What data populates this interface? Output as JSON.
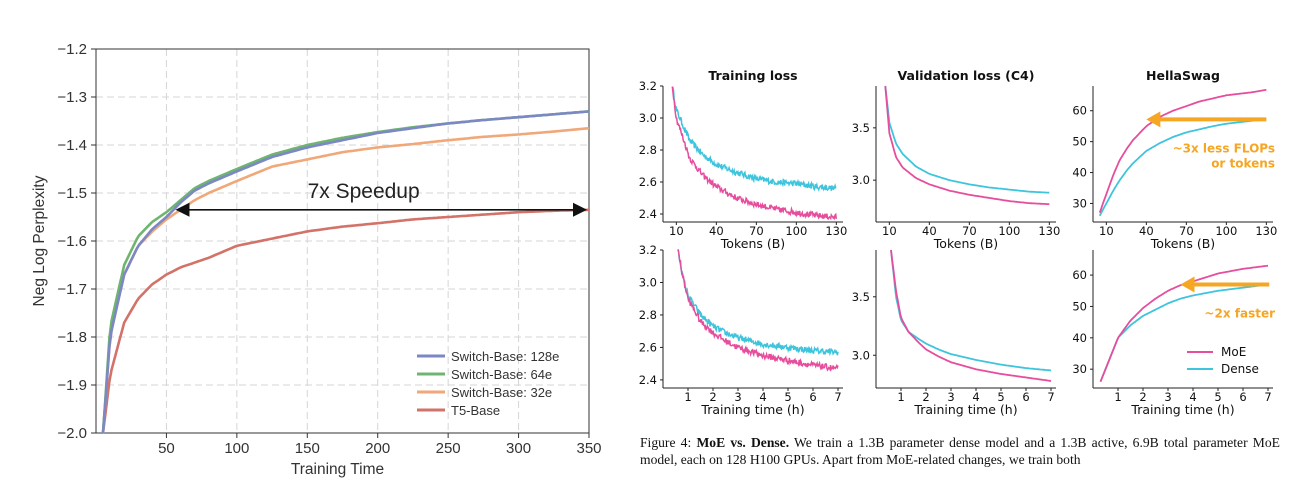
{
  "colors": {
    "switch128": "#7b88c4",
    "switch64": "#6fb46f",
    "switch32": "#f0a878",
    "t5": "#d27268",
    "moe": "#e64d9c",
    "dense": "#3ec4dc",
    "arrow": "#f5a623"
  },
  "chart_data": [
    {
      "type": "line",
      "title": "",
      "xlabel": "Training Time",
      "ylabel": "Neg Log Perplexity",
      "xlim": [
        0,
        350
      ],
      "ylim": [
        -2.0,
        -1.2
      ],
      "xticks": [
        "50",
        "100",
        "150",
        "200",
        "250",
        "300",
        "350"
      ],
      "yticks": [
        "−1.2",
        "−1.3",
        "−1.4",
        "−1.5",
        "−1.6",
        "−1.7",
        "−1.8",
        "−1.9",
        "−2.0"
      ],
      "grid": true,
      "legend_position": "bottom-right",
      "annotation": "7x Speedup",
      "annotation_span": [
        55,
        350
      ],
      "annotation_y": -1.535,
      "series": [
        {
          "name": "Switch-Base: 128e",
          "color_key": "switch128",
          "x": [
            5,
            10,
            20,
            30,
            40,
            50,
            60,
            70,
            80,
            100,
            125,
            150,
            175,
            200,
            225,
            250,
            275,
            300,
            325,
            350
          ],
          "y": [
            -2.0,
            -1.8,
            -1.67,
            -1.61,
            -1.575,
            -1.55,
            -1.52,
            -1.495,
            -1.48,
            -1.455,
            -1.425,
            -1.405,
            -1.39,
            -1.375,
            -1.365,
            -1.355,
            -1.348,
            -1.342,
            -1.336,
            -1.33
          ]
        },
        {
          "name": "Switch-Base: 64e",
          "color_key": "switch64",
          "x": [
            5,
            10,
            20,
            30,
            40,
            50,
            60,
            70,
            80,
            100,
            125,
            150,
            175,
            200,
            225,
            250,
            275,
            300,
            325,
            350
          ],
          "y": [
            -2.0,
            -1.78,
            -1.65,
            -1.59,
            -1.56,
            -1.54,
            -1.515,
            -1.49,
            -1.475,
            -1.45,
            -1.42,
            -1.4,
            -1.385,
            -1.373,
            -1.363,
            -1.355,
            -1.348,
            -1.342,
            -1.336,
            -1.33
          ]
        },
        {
          "name": "Switch-Base: 32e",
          "color_key": "switch32",
          "x": [
            5,
            10,
            20,
            30,
            40,
            50,
            60,
            70,
            80,
            100,
            125,
            150,
            175,
            200,
            225,
            250,
            275,
            300,
            325,
            350
          ],
          "y": [
            -2.0,
            -1.8,
            -1.67,
            -1.61,
            -1.58,
            -1.555,
            -1.535,
            -1.515,
            -1.5,
            -1.475,
            -1.445,
            -1.43,
            -1.415,
            -1.405,
            -1.398,
            -1.39,
            -1.383,
            -1.378,
            -1.372,
            -1.365
          ]
        },
        {
          "name": "T5-Base",
          "color_key": "t5",
          "x": [
            5,
            10,
            20,
            30,
            40,
            50,
            60,
            80,
            100,
            125,
            150,
            175,
            200,
            225,
            250,
            275,
            300,
            325,
            350
          ],
          "y": [
            -2.0,
            -1.88,
            -1.77,
            -1.72,
            -1.69,
            -1.67,
            -1.655,
            -1.635,
            -1.61,
            -1.595,
            -1.58,
            -1.57,
            -1.563,
            -1.555,
            -1.55,
            -1.545,
            -1.54,
            -1.537,
            -1.535
          ]
        }
      ]
    },
    {
      "type": "line",
      "title": "Training loss",
      "xlabel": "Tokens (B)",
      "xlim": [
        0,
        135
      ],
      "ylim": [
        2.35,
        3.2
      ],
      "xticks": [
        10,
        40,
        70,
        100,
        130
      ],
      "yticks": [
        "2.4",
        "2.6",
        "2.8",
        "3.0",
        "3.2"
      ],
      "ytick_values": [
        2.4,
        2.6,
        2.8,
        3.0,
        3.2
      ],
      "noisy": true,
      "series": [
        {
          "name": "MoE",
          "color_key": "moe",
          "x": [
            7,
            10,
            20,
            30,
            40,
            55,
            70,
            85,
            100,
            115,
            130
          ],
          "y": [
            3.2,
            3.0,
            2.75,
            2.64,
            2.57,
            2.5,
            2.46,
            2.43,
            2.41,
            2.39,
            2.38
          ]
        },
        {
          "name": "Dense",
          "color_key": "dense",
          "x": [
            7,
            10,
            20,
            30,
            40,
            55,
            70,
            85,
            100,
            115,
            130
          ],
          "y": [
            3.2,
            3.05,
            2.86,
            2.77,
            2.71,
            2.66,
            2.62,
            2.6,
            2.59,
            2.57,
            2.56
          ]
        }
      ]
    },
    {
      "type": "line",
      "title": "Validation loss (C4)",
      "xlabel": "Tokens (B)",
      "xlim": [
        0,
        135
      ],
      "ylim": [
        2.6,
        3.9
      ],
      "xticks": [
        10,
        40,
        70,
        100,
        130
      ],
      "yticks": [
        "3.0",
        "3.5"
      ],
      "ytick_values": [
        3.0,
        3.5
      ],
      "noisy": false,
      "series": [
        {
          "name": "MoE",
          "color_key": "moe",
          "x": [
            7,
            10,
            15,
            20,
            30,
            40,
            55,
            70,
            85,
            100,
            115,
            130
          ],
          "y": [
            3.9,
            3.45,
            3.22,
            3.12,
            3.02,
            2.96,
            2.9,
            2.86,
            2.83,
            2.8,
            2.78,
            2.77
          ]
        },
        {
          "name": "Dense",
          "color_key": "dense",
          "x": [
            7,
            10,
            15,
            20,
            30,
            40,
            55,
            70,
            85,
            100,
            115,
            130
          ],
          "y": [
            3.9,
            3.55,
            3.35,
            3.25,
            3.13,
            3.06,
            3.0,
            2.96,
            2.93,
            2.91,
            2.89,
            2.88
          ]
        }
      ]
    },
    {
      "type": "line",
      "title": "HellaSwag",
      "xlabel": "Tokens (B)",
      "xlim": [
        0,
        135
      ],
      "ylim": [
        24,
        68
      ],
      "xticks": [
        10,
        40,
        70,
        100,
        130
      ],
      "yticks": [
        "30",
        "40",
        "50",
        "60"
      ],
      "ytick_values": [
        30,
        40,
        50,
        60
      ],
      "noisy": false,
      "annotation": "~3x less FLOPs\nor tokens",
      "arrow": {
        "from_x": 130,
        "to_x": 40,
        "y": 57.2
      },
      "series": [
        {
          "name": "MoE",
          "color_key": "moe",
          "x": [
            5,
            10,
            15,
            20,
            25,
            30,
            40,
            50,
            60,
            70,
            80,
            90,
            100,
            110,
            120,
            130
          ],
          "y": [
            27,
            33,
            39,
            44,
            47.5,
            50.5,
            55,
            58,
            60,
            61.5,
            63,
            64,
            65,
            65.5,
            66,
            66.8
          ]
        },
        {
          "name": "Dense",
          "color_key": "dense",
          "x": [
            5,
            10,
            15,
            20,
            25,
            30,
            40,
            50,
            60,
            70,
            80,
            90,
            100,
            110,
            120,
            130
          ],
          "y": [
            26,
            30,
            34,
            37.5,
            40.5,
            43,
            47,
            49.5,
            51.5,
            53,
            54,
            55,
            55.8,
            56.3,
            56.8,
            57.2
          ]
        }
      ]
    },
    {
      "type": "line",
      "title": "",
      "xlabel": "Training time (h)",
      "xlim": [
        0,
        7.2
      ],
      "ylim": [
        2.35,
        3.2
      ],
      "xticks": [
        1,
        2,
        3,
        4,
        5,
        6,
        7
      ],
      "yticks": [
        "2.4",
        "2.6",
        "2.8",
        "3.0",
        "3.2"
      ],
      "ytick_values": [
        2.4,
        2.6,
        2.8,
        3.0,
        3.2
      ],
      "noisy": true,
      "series": [
        {
          "name": "MoE",
          "color_key": "moe",
          "x": [
            0.6,
            0.8,
            1,
            1.5,
            2,
            2.5,
            3,
            4,
            5,
            6,
            7
          ],
          "y": [
            3.2,
            3.03,
            2.9,
            2.76,
            2.69,
            2.64,
            2.6,
            2.55,
            2.52,
            2.49,
            2.47
          ]
        },
        {
          "name": "Dense",
          "color_key": "dense",
          "x": [
            0.6,
            0.8,
            1,
            1.5,
            2,
            2.5,
            3,
            4,
            5,
            6,
            7
          ],
          "y": [
            3.2,
            3.03,
            2.92,
            2.8,
            2.73,
            2.69,
            2.66,
            2.62,
            2.6,
            2.58,
            2.57
          ]
        }
      ]
    },
    {
      "type": "line",
      "title": "",
      "xlabel": "Training time (h)",
      "xlim": [
        0,
        7.2
      ],
      "ylim": [
        2.72,
        3.9
      ],
      "xticks": [
        1,
        2,
        3,
        4,
        5,
        6,
        7
      ],
      "yticks": [
        "3.0",
        "3.5"
      ],
      "ytick_values": [
        3.0,
        3.5
      ],
      "noisy": false,
      "series": [
        {
          "name": "MoE",
          "color_key": "moe",
          "x": [
            0.6,
            0.8,
            1,
            1.3,
            1.7,
            2,
            2.5,
            3,
            4,
            5,
            6,
            7
          ],
          "y": [
            3.9,
            3.55,
            3.32,
            3.2,
            3.11,
            3.05,
            2.99,
            2.94,
            2.88,
            2.84,
            2.81,
            2.78
          ]
        },
        {
          "name": "Dense",
          "color_key": "dense",
          "x": [
            0.6,
            0.8,
            1,
            1.3,
            1.7,
            2,
            2.5,
            3,
            4,
            5,
            6,
            7
          ],
          "y": [
            3.9,
            3.5,
            3.3,
            3.2,
            3.14,
            3.1,
            3.05,
            3.01,
            2.96,
            2.92,
            2.89,
            2.87
          ]
        }
      ]
    },
    {
      "type": "line",
      "title": "",
      "xlabel": "Training time (h)",
      "xlim": [
        0,
        7.2
      ],
      "ylim": [
        24,
        68
      ],
      "xticks": [
        1,
        2,
        3,
        4,
        5,
        6,
        7
      ],
      "yticks": [
        "30",
        "40",
        "50",
        "60"
      ],
      "ytick_values": [
        30,
        40,
        50,
        60
      ],
      "noisy": false,
      "annotation": "~2x faster",
      "arrow": {
        "from_x": 7.05,
        "to_x": 3.5,
        "y": 57
      },
      "legend": [
        "MoE",
        "Dense"
      ],
      "legend_position": "bottom-right",
      "series": [
        {
          "name": "MoE",
          "color_key": "moe",
          "x": [
            0.3,
            0.6,
            1,
            1.5,
            2,
            2.5,
            3,
            3.5,
            4,
            5,
            6,
            7
          ],
          "y": [
            26,
            32,
            40,
            45.5,
            49.5,
            52.5,
            55,
            56.8,
            58,
            60.5,
            62,
            63
          ]
        },
        {
          "name": "Dense",
          "color_key": "dense",
          "x": [
            0.3,
            0.6,
            1,
            1.5,
            2,
            2.5,
            3,
            3.5,
            4,
            5,
            6,
            7
          ],
          "y": [
            26,
            32,
            40,
            44,
            47,
            49,
            51,
            52.5,
            53.5,
            55,
            56,
            57
          ]
        }
      ]
    }
  ],
  "caption": {
    "prefix": "Figure 4: ",
    "bold": "MoE vs. Dense.",
    "text": " We train a 1.3B parameter dense model and a 1.3B active, 6.9B total parameter MoE model, each on 128 H100 GPUs. Apart from MoE-related changes, we train both"
  }
}
